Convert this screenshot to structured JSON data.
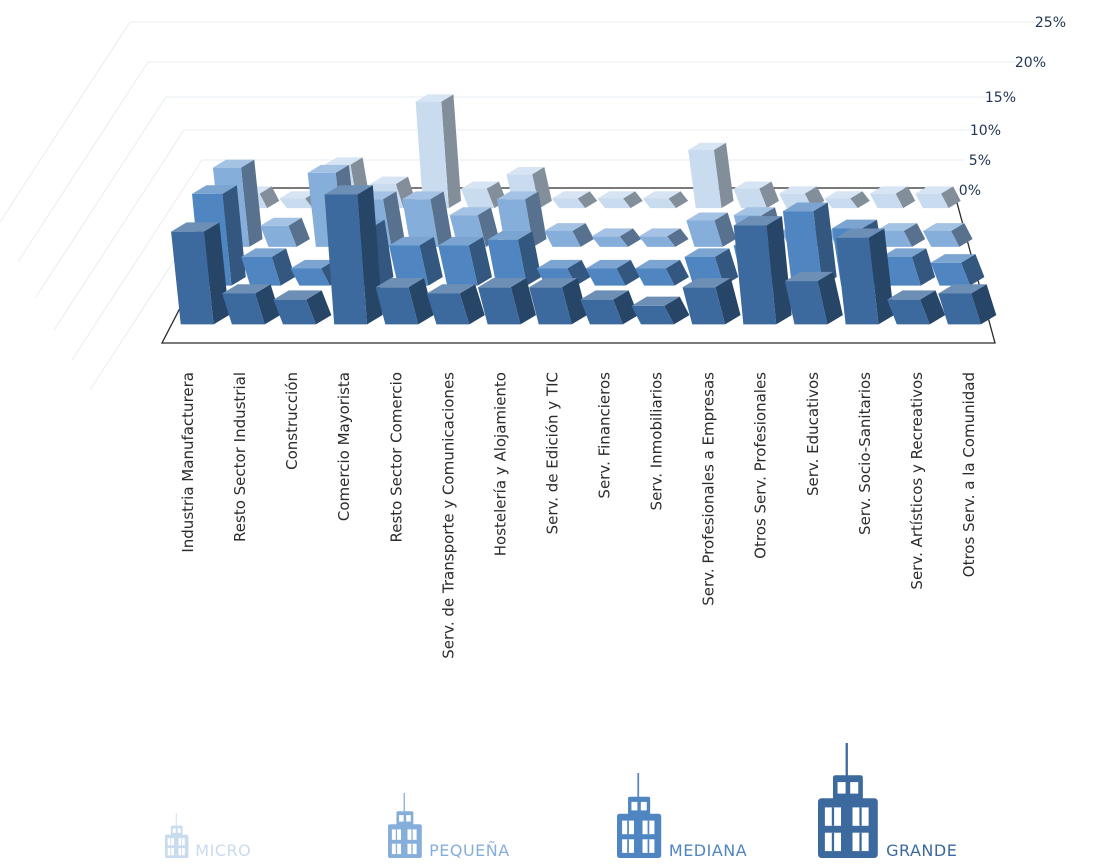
{
  "chart_data": {
    "type": "bar-3d",
    "y_tick_labels": [
      "0%",
      "5%",
      "10%",
      "15%",
      "20%",
      "25%"
    ],
    "ylim": [
      0,
      25
    ],
    "categories": [
      "Industria Manufacturera",
      "Resto Sector Industrial",
      "Construcción",
      "Comercio Mayorista",
      "Resto Sector Comercio",
      "Serv. de Transporte y Comunicaciones",
      "Hostelería y Alojamiento",
      "Serv. de Edición y TIC",
      "Serv. Financieros",
      "Serv. Inmobiliarios",
      "Serv. Profesionales a Empresas",
      "Otros Serv. Profesionales",
      "Serv. Educativos",
      "Serv. Socio-Sanitarios",
      "Serv. Artísticos y Recreativos",
      "Otros Serv. a la Comunidad"
    ],
    "series": [
      {
        "name": "GRANDE",
        "color": "#3c6a9e",
        "values": [
          15,
          5,
          4,
          21,
          6,
          5,
          6,
          6,
          4,
          3,
          6,
          16,
          7,
          14,
          4,
          5
        ]
      },
      {
        "name": "MEDIANA",
        "color": "#4f86c2",
        "values": [
          16,
          5,
          3,
          10,
          7,
          7,
          8,
          3,
          3,
          3,
          5,
          7,
          13,
          10,
          5,
          4
        ]
      },
      {
        "name": "PEQUEÑA",
        "color": "#86aedb",
        "values": [
          15,
          4,
          14,
          9,
          9,
          6,
          9,
          3,
          2,
          2,
          5,
          6,
          3,
          3,
          3,
          3
        ]
      },
      {
        "name": "MICRO",
        "color": "#c9dbef",
        "values": [
          3,
          2,
          9,
          5,
          22,
          4,
          7,
          2,
          2,
          2,
          12,
          4,
          3,
          2,
          3,
          3
        ]
      }
    ],
    "legend": {
      "position": "bottom"
    },
    "grid": true
  }
}
